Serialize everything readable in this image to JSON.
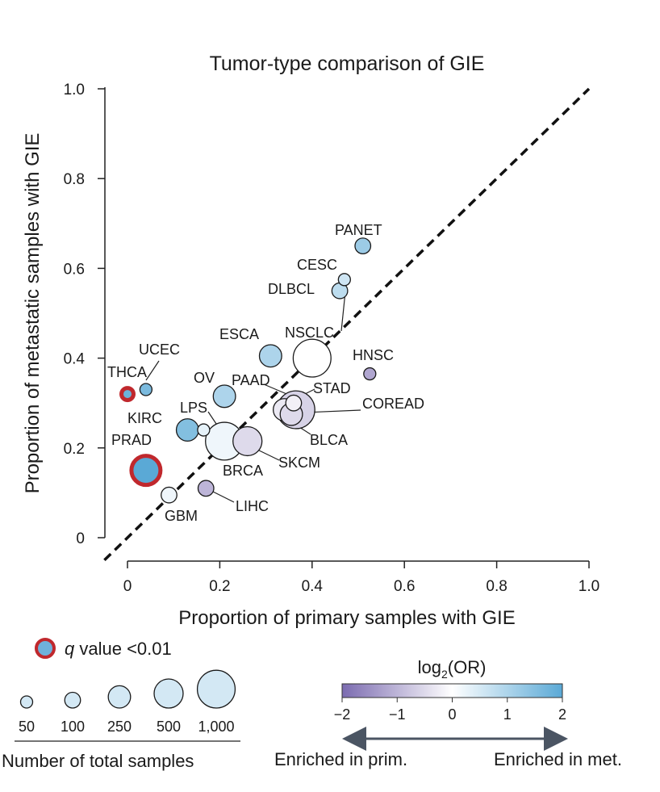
{
  "chart_data": {
    "type": "scatter",
    "title": "Tumor-type comparison of GIE",
    "xlabel": "Proportion of primary samples with GIE",
    "ylabel": "Proportion of metastatic samples with GIE",
    "xlim": [
      0,
      1.0
    ],
    "ylim": [
      0,
      1.0
    ],
    "xticks": [
      "0",
      "0.2",
      "0.4",
      "0.6",
      "0.8",
      "1.0"
    ],
    "yticks": [
      "0",
      "0.2",
      "0.4",
      "0.6",
      "0.8",
      "1.0"
    ],
    "diagonal": "y = x (dashed)",
    "points": [
      {
        "label": "PANET",
        "x": 0.51,
        "y": 0.65,
        "n": 100,
        "log2or": 1.2,
        "sig": false
      },
      {
        "label": "CESC",
        "x": 0.47,
        "y": 0.575,
        "n": 50,
        "log2or": 0.6,
        "sig": false
      },
      {
        "label": "DLBCL",
        "x": 0.46,
        "y": 0.55,
        "n": 100,
        "log2or": 0.8,
        "sig": false
      },
      {
        "label": "ESCA",
        "x": 0.31,
        "y": 0.405,
        "n": 250,
        "log2or": 1.0,
        "sig": false
      },
      {
        "label": "NSCLC",
        "x": 0.4,
        "y": 0.4,
        "n": 1000,
        "log2or": 0.0,
        "sig": false
      },
      {
        "label": "HNSC",
        "x": 0.525,
        "y": 0.365,
        "n": 50,
        "log2or": -1.2,
        "sig": false
      },
      {
        "label": "UCEC",
        "x": 0.04,
        "y": 0.33,
        "n": 50,
        "log2or": 1.6,
        "sig": false
      },
      {
        "label": "THCA",
        "x": 0.0,
        "y": 0.32,
        "n": 50,
        "log2or": 1.8,
        "sig": true
      },
      {
        "label": "OV",
        "x": 0.21,
        "y": 0.315,
        "n": 250,
        "log2or": 1.0,
        "sig": false
      },
      {
        "label": "PAAD",
        "x": 0.34,
        "y": 0.285,
        "n": 250,
        "log2or": -0.3,
        "sig": false
      },
      {
        "label": "STAD",
        "x": 0.36,
        "y": 0.3,
        "n": 100,
        "log2or": -0.2,
        "sig": false
      },
      {
        "label": "COREAD",
        "x": 0.365,
        "y": 0.285,
        "n": 1000,
        "log2or": -0.6,
        "sig": false
      },
      {
        "label": "BLCA",
        "x": 0.355,
        "y": 0.275,
        "n": 250,
        "log2or": -0.5,
        "sig": false
      },
      {
        "label": "LPS",
        "x": 0.165,
        "y": 0.24,
        "n": 50,
        "log2or": 0.3,
        "sig": false
      },
      {
        "label": "KIRC",
        "x": 0.13,
        "y": 0.24,
        "n": 250,
        "log2or": 1.5,
        "sig": false
      },
      {
        "label": "BRCA",
        "x": 0.21,
        "y": 0.215,
        "n": 1000,
        "log2or": 0.2,
        "sig": false
      },
      {
        "label": "SKCM",
        "x": 0.26,
        "y": 0.215,
        "n": 500,
        "log2or": -0.5,
        "sig": false
      },
      {
        "label": "PRAD",
        "x": 0.04,
        "y": 0.15,
        "n": 500,
        "log2or": 2.0,
        "sig": true
      },
      {
        "label": "LIHC",
        "x": 0.17,
        "y": 0.11,
        "n": 100,
        "log2or": -1.0,
        "sig": false
      },
      {
        "label": "GBM",
        "x": 0.09,
        "y": 0.095,
        "n": 100,
        "log2or": 0.2,
        "sig": false
      }
    ],
    "legend_significance": {
      "prefix": "q",
      "text": " value <0.01"
    },
    "size_legend": {
      "values": [
        "50",
        "100",
        "250",
        "500",
        "1,000"
      ],
      "title": "Number of total samples"
    },
    "colorbar": {
      "title_base": "log",
      "title_sub": "2",
      "title_rest": "(OR)",
      "ticks": [
        "−2",
        "−1",
        "0",
        "1",
        "2"
      ],
      "range": [
        -2,
        2
      ],
      "colors": {
        "low": "#7b6bb0",
        "mid": "#ffffff",
        "high": "#5aa9d6"
      },
      "left_label": "Enriched in prim.",
      "right_label": "Enriched in met."
    }
  }
}
